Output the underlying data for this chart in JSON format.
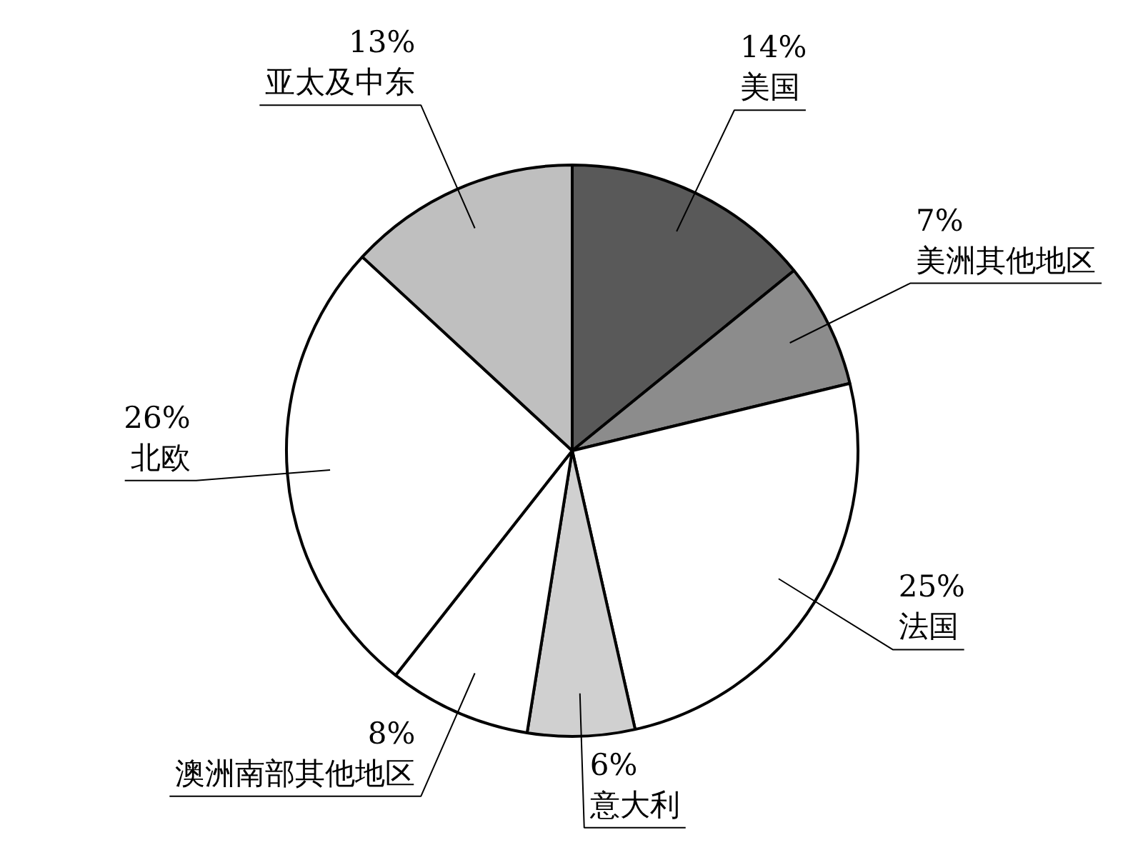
{
  "chart_data": {
    "type": "pie",
    "categories": [
      "美国",
      "美洲其他地区",
      "法国",
      "意大利",
      "澳洲南部其他地区",
      "北欧",
      "亚太及中东"
    ],
    "values": [
      14,
      7,
      25,
      6,
      8,
      26,
      13
    ],
    "value_labels": [
      "14%",
      "7%",
      "25%",
      "6%",
      "8%",
      "26%",
      "13%"
    ],
    "colors": [
      "#595959",
      "#8c8c8c",
      "#ffffff",
      "#d0d0d0",
      "#ffffff",
      "#ffffff",
      "#bfbfbf"
    ]
  }
}
